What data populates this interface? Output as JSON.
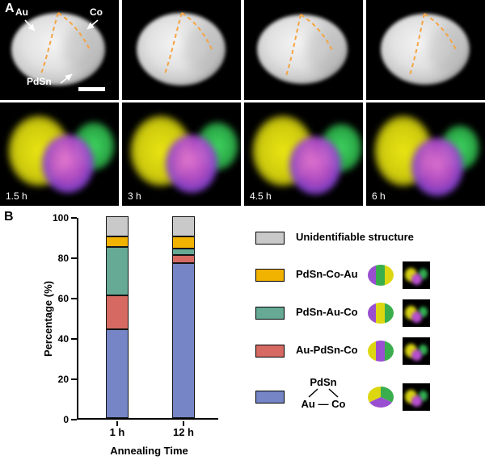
{
  "panel_a": {
    "label": "A",
    "annotations": {
      "au": "Au",
      "co": "Co",
      "pdsn": "PdSn"
    },
    "timepoints": [
      "1.5 h",
      "3 h",
      "4.5 h",
      "6 h"
    ]
  },
  "panel_b": {
    "label": "B"
  },
  "chart_data": {
    "type": "bar",
    "stacked": true,
    "categories": [
      "1 h",
      "12 h"
    ],
    "series": [
      {
        "name": "PdSn/Au—Co",
        "color": "#7585c6",
        "values": [
          44,
          77
        ]
      },
      {
        "name": "Au-PdSn-Co",
        "color": "#d66a62",
        "values": [
          17,
          4
        ]
      },
      {
        "name": "PdSn-Au-Co",
        "color": "#66a995",
        "values": [
          24,
          3
        ]
      },
      {
        "name": "PdSn-Co-Au",
        "color": "#f2b200",
        "values": [
          5,
          6
        ]
      },
      {
        "name": "Unidentifiable structure",
        "color": "#c9c9c9",
        "values": [
          10,
          10
        ]
      }
    ],
    "title": "",
    "xlabel": "Annealing Time",
    "ylabel": "Percentage (%)",
    "ylim": [
      0,
      100
    ],
    "yticks": [
      0,
      20,
      40,
      60,
      80,
      100
    ],
    "legend_position": "right",
    "grid": false
  },
  "legend": {
    "items": [
      {
        "label": "Unidentifiable structure",
        "color": "#c9c9c9"
      },
      {
        "label": "PdSn-Co-Au",
        "color": "#f2b200"
      },
      {
        "label": "PdSn-Au-Co",
        "color": "#66a995"
      },
      {
        "label": "Au-PdSn-Co",
        "color": "#d66a62"
      },
      {
        "label": "PdSn/Au—Co",
        "color": "#7585c6",
        "diagram": {
          "top": "PdSn",
          "bottom": "Au — Co"
        }
      }
    ]
  },
  "colors": {
    "map_au_yellow": "#e8e412",
    "map_co_green": "#2aa746",
    "map_pdsn_purple": "#b84fd0",
    "boundary_dash_orange": "#f4a442"
  }
}
